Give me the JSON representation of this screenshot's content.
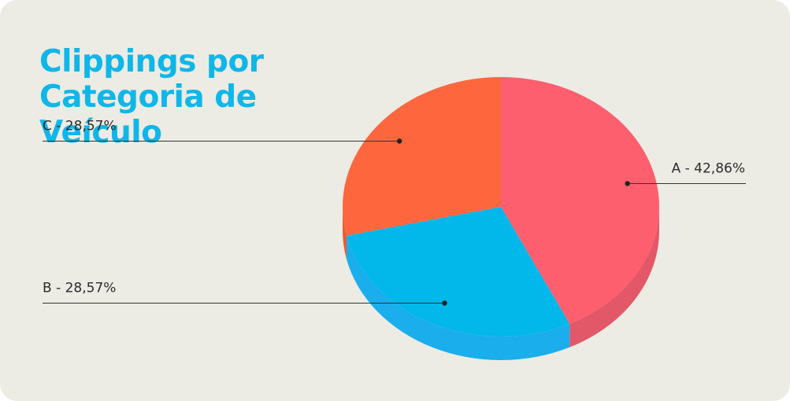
{
  "title_lines": [
    "Clippings por",
    "Categoria de",
    "Veículo"
  ],
  "chart_data": {
    "type": "pie",
    "title": "Clippings por Categoria de Veículo",
    "slices": [
      {
        "category": "A",
        "value": 42.86,
        "label": "A - 42,86%",
        "color": "#fe5f6f",
        "side_color": "#e25868",
        "label_side": "right"
      },
      {
        "category": "B",
        "value": 28.57,
        "label": "B - 28,57%",
        "color": "#02b7e9",
        "side_color": "#1aaeec",
        "label_side": "left"
      },
      {
        "category": "C",
        "value": 28.57,
        "label": "C - 28,57%",
        "color": "#fe673e",
        "side_color": "#e85c36",
        "label_side": "left"
      }
    ]
  }
}
